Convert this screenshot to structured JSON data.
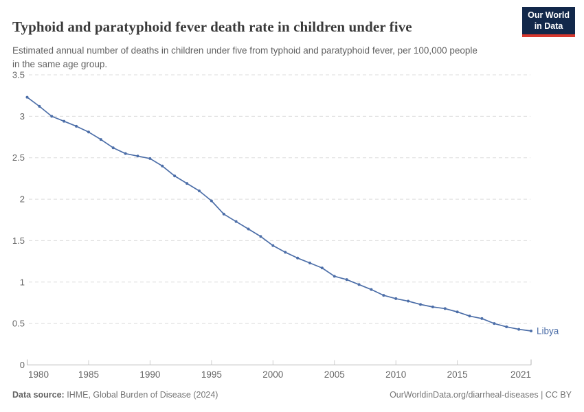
{
  "header": {
    "title": "Typhoid and paratyphoid fever death rate in children under five",
    "subtitle": "Estimated annual number of deaths in children under five from typhoid and paratyphoid fever, per 100,000 people in the same age group.",
    "logo": {
      "line1": "Our World",
      "line2": "in Data"
    }
  },
  "footer": {
    "source_label": "Data source:",
    "source_text": "IHME, Global Burden of Disease (2024)",
    "right_text": "OurWorldinData.org/diarrheal-diseases | CC BY"
  },
  "colors": {
    "series_blue": "#4c6ea8",
    "gridline": "#dcdcdc",
    "axis": "#b3b3b3",
    "tick": "#cfcfcf",
    "tick_label": "#666666",
    "logo_bg": "#12284a",
    "logo_stripe": "#d7382e"
  },
  "chart_data": {
    "type": "line",
    "title": "Typhoid and paratyphoid fever death rate in children under five",
    "xlabel": "",
    "ylabel": "",
    "xlim": [
      1980,
      2021
    ],
    "ylim": [
      0,
      3.5
    ],
    "x_ticks": [
      1980,
      1985,
      1990,
      1995,
      2000,
      2005,
      2010,
      2015,
      2021
    ],
    "y_ticks": [
      0,
      0.5,
      1,
      1.5,
      2,
      2.5,
      3,
      3.5
    ],
    "grid": "horizontal-dashed",
    "legend_position": "end-of-line-label",
    "x": [
      1980,
      1981,
      1982,
      1983,
      1984,
      1985,
      1986,
      1987,
      1988,
      1989,
      1990,
      1991,
      1992,
      1993,
      1994,
      1995,
      1996,
      1997,
      1998,
      1999,
      2000,
      2001,
      2002,
      2003,
      2004,
      2005,
      2006,
      2007,
      2008,
      2009,
      2010,
      2011,
      2012,
      2013,
      2014,
      2015,
      2016,
      2017,
      2018,
      2019,
      2020,
      2021
    ],
    "series": [
      {
        "name": "Libya",
        "color": "#4c6ea8",
        "values": [
          3.23,
          3.12,
          3.0,
          2.94,
          2.88,
          2.81,
          2.72,
          2.62,
          2.55,
          2.52,
          2.49,
          2.4,
          2.28,
          2.19,
          2.1,
          1.98,
          1.82,
          1.73,
          1.64,
          1.55,
          1.44,
          1.36,
          1.29,
          1.23,
          1.17,
          1.07,
          1.03,
          0.97,
          0.91,
          0.84,
          0.8,
          0.77,
          0.73,
          0.7,
          0.68,
          0.64,
          0.59,
          0.56,
          0.5,
          0.46,
          0.43,
          0.41
        ]
      }
    ]
  }
}
